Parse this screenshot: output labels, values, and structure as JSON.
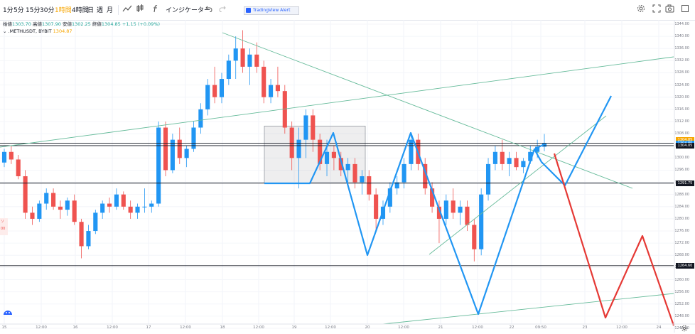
{
  "toolbar": {
    "timeframes": [
      "1分",
      "5分",
      "15分",
      "30分",
      "1時間",
      "4時間",
      "日",
      "週",
      "月"
    ],
    "active_timeframe": "1時間",
    "indicators_label": "インジケーター",
    "icons": [
      "line-chart-icon",
      "candle-icon",
      "fx-icon",
      "undo-icon",
      "redo-icon",
      "settings-icon",
      "camera-icon",
      "fullscreen-icon"
    ]
  },
  "alert_tag": "TradingView Alert",
  "ohlc": {
    "open_label": "始値",
    "open": "1303.70",
    "high_label": "高値",
    "high": "1307.90",
    "low_label": "安値",
    "low": "1302.25",
    "close_label": "終値",
    "close": "1304.85",
    "change": "+1.15 (+0.09%)"
  },
  "symbol": {
    "name": ".METHUSDT, BYBIT",
    "price": "1304.87"
  },
  "left_tag": [
    "ソ",
    "00"
  ],
  "colors": {
    "up": "#2196f3",
    "down": "#ef5350",
    "projection_blue": "#2196f3",
    "projection_red": "#e53935",
    "trendline": "#66bb9a",
    "accent": "#f7a600"
  },
  "chart_data": {
    "type": "candlestick",
    "instrument": ".METHUSDT, BYBIT",
    "interval": "1時間",
    "yaxis": {
      "ticks": [
        1244.0,
        1248.0,
        1252.0,
        1256.0,
        1260.0,
        1264.0,
        1268.0,
        1272.0,
        1276.0,
        1280.0,
        1284.0,
        1288.0,
        1292.0,
        1296.0,
        1300.0,
        1304.0,
        1308.0,
        1312.0,
        1316.0,
        1320.0,
        1324.0,
        1328.0,
        1332.0,
        1336.0,
        1340.0,
        1344.0
      ],
      "ylim": [
        1244,
        1344
      ]
    },
    "xaxis": {
      "ticks": [
        "15",
        "12:00",
        "16",
        "12:00",
        "17",
        "12:00",
        "18",
        "12:00",
        "19",
        "12:00",
        "20",
        "12:00",
        "21",
        "12:00",
        "22",
        "09:50",
        "23",
        "12:00",
        "24"
      ]
    },
    "horizontal_lines": [
      {
        "price": 1304.85,
        "label": "1304.85"
      },
      {
        "price": 1304.05,
        "label": "1304.05"
      },
      {
        "price": 1291.75,
        "label": "1291.75"
      },
      {
        "price": 1264.6,
        "label": "1264.60"
      }
    ],
    "price_tags": [
      {
        "price": 1305.8,
        "label": "1304.85",
        "color": "#f7a600"
      },
      {
        "price": 1304.85,
        "label": "1304.85",
        "color": "#2196f3"
      },
      {
        "price": 1304.05,
        "label": "1304.05",
        "color": "#131722"
      },
      {
        "price": 1291.75,
        "label": "1291.75",
        "color": "#131722"
      },
      {
        "price": 1264.6,
        "label": "1264.60",
        "color": "#131722"
      }
    ],
    "candles": [
      [
        1298.5,
        1303.0,
        1297.0,
        1302.0
      ],
      [
        1302.0,
        1304.0,
        1298.0,
        1299.5
      ],
      [
        1299.5,
        1301.0,
        1293.0,
        1294.0
      ],
      [
        1294.0,
        1296.0,
        1280.0,
        1282.0
      ],
      [
        1282.0,
        1284.0,
        1278.0,
        1280.0
      ],
      [
        1280.0,
        1286.0,
        1279.0,
        1285.0
      ],
      [
        1285.0,
        1290.0,
        1283.0,
        1288.5
      ],
      [
        1288.5,
        1290.0,
        1283.0,
        1284.0
      ],
      [
        1284.0,
        1286.0,
        1280.0,
        1283.0
      ],
      [
        1283.0,
        1287.0,
        1281.0,
        1286.0
      ],
      [
        1286.0,
        1288.0,
        1278.0,
        1279.0
      ],
      [
        1279.0,
        1280.0,
        1267.0,
        1271.0
      ],
      [
        1271.0,
        1278.0,
        1270.0,
        1276.0
      ],
      [
        1276.0,
        1283.0,
        1275.0,
        1282.0
      ],
      [
        1282.0,
        1286.0,
        1280.0,
        1285.0
      ],
      [
        1285.0,
        1287.0,
        1282.0,
        1284.0
      ],
      [
        1284.0,
        1290.0,
        1283.0,
        1288.0
      ],
      [
        1288.0,
        1289.0,
        1283.0,
        1284.0
      ],
      [
        1284.0,
        1286.0,
        1280.0,
        1282.0
      ],
      [
        1282.0,
        1285.0,
        1280.0,
        1284.0
      ],
      [
        1284.0,
        1290.0,
        1282.0,
        1284.0
      ],
      [
        1284.0,
        1286.0,
        1282.0,
        1285.0
      ],
      [
        1285.0,
        1312.0,
        1284.0,
        1310.0
      ],
      [
        1310.0,
        1312.0,
        1294.0,
        1296.0
      ],
      [
        1296.0,
        1308.0,
        1295.0,
        1306.0
      ],
      [
        1306.0,
        1310.0,
        1298.0,
        1300.0
      ],
      [
        1300.0,
        1304.0,
        1297.0,
        1303.0
      ],
      [
        1303.0,
        1312.0,
        1302.0,
        1310.0
      ],
      [
        1310.0,
        1318.0,
        1308.0,
        1316.0
      ],
      [
        1316.0,
        1326.0,
        1314.0,
        1324.0
      ],
      [
        1324.0,
        1330.0,
        1318.0,
        1320.0
      ],
      [
        1320.0,
        1328.0,
        1318.0,
        1326.0
      ],
      [
        1326.0,
        1334.0,
        1324.0,
        1332.0
      ],
      [
        1332.0,
        1340.0,
        1326.0,
        1336.0
      ],
      [
        1336.0,
        1342.0,
        1328.0,
        1330.0
      ],
      [
        1330.0,
        1336.0,
        1324.0,
        1334.0
      ],
      [
        1334.0,
        1338.0,
        1328.0,
        1330.0
      ],
      [
        1330.0,
        1332.0,
        1318.0,
        1320.0
      ],
      [
        1320.0,
        1326.0,
        1318.0,
        1324.0
      ],
      [
        1324.0,
        1330.0,
        1320.0,
        1322.0
      ],
      [
        1322.0,
        1324.0,
        1308.0,
        1310.0
      ],
      [
        1310.0,
        1312.0,
        1296.0,
        1300.0
      ],
      [
        1300.0,
        1310.0,
        1290.0,
        1306.0
      ],
      [
        1306.0,
        1316.0,
        1300.0,
        1314.0
      ],
      [
        1314.0,
        1316.0,
        1302.0,
        1306.0
      ],
      [
        1306.0,
        1308.0,
        1296.0,
        1298.0
      ],
      [
        1298.0,
        1306.0,
        1294.0,
        1302.0
      ],
      [
        1302.0,
        1304.0,
        1296.0,
        1300.0
      ],
      [
        1300.0,
        1302.0,
        1294.0,
        1296.0
      ],
      [
        1296.0,
        1300.0,
        1292.0,
        1298.0
      ],
      [
        1298.0,
        1300.0,
        1290.0,
        1292.0
      ],
      [
        1292.0,
        1296.0,
        1288.0,
        1294.0
      ],
      [
        1294.0,
        1296.0,
        1286.0,
        1288.0
      ],
      [
        1288.0,
        1290.0,
        1276.0,
        1280.0
      ],
      [
        1280.0,
        1286.0,
        1278.0,
        1284.0
      ],
      [
        1284.0,
        1292.0,
        1282.0,
        1290.0
      ],
      [
        1290.0,
        1294.0,
        1288.0,
        1292.0
      ],
      [
        1292.0,
        1300.0,
        1290.0,
        1298.0
      ],
      [
        1298.0,
        1308.0,
        1296.0,
        1306.0
      ],
      [
        1306.0,
        1308.0,
        1296.0,
        1298.0
      ],
      [
        1298.0,
        1300.0,
        1288.0,
        1290.0
      ],
      [
        1290.0,
        1292.0,
        1282.0,
        1284.0
      ],
      [
        1284.0,
        1286.0,
        1272.0,
        1280.0
      ],
      [
        1280.0,
        1288.0,
        1278.0,
        1286.0
      ],
      [
        1286.0,
        1290.0,
        1280.0,
        1282.0
      ],
      [
        1282.0,
        1286.0,
        1278.0,
        1284.0
      ],
      [
        1284.0,
        1286.0,
        1276.0,
        1278.0
      ],
      [
        1278.0,
        1280.0,
        1266.0,
        1270.0
      ],
      [
        1270.0,
        1290.0,
        1268.0,
        1288.0
      ],
      [
        1288.0,
        1300.0,
        1286.0,
        1298.0
      ],
      [
        1298.0,
        1304.0,
        1296.0,
        1302.0
      ],
      [
        1302.0,
        1306.0,
        1296.0,
        1298.0
      ],
      [
        1298.0,
        1302.0,
        1294.0,
        1300.0
      ],
      [
        1300.0,
        1302.0,
        1296.0,
        1297.0
      ],
      [
        1297.0,
        1300.0,
        1295.0,
        1299.0
      ],
      [
        1299.0,
        1304.0,
        1298.0,
        1302.0
      ],
      [
        1302.0,
        1306.0,
        1300.0,
        1303.7
      ],
      [
        1303.7,
        1307.9,
        1302.25,
        1304.85
      ]
    ]
  }
}
